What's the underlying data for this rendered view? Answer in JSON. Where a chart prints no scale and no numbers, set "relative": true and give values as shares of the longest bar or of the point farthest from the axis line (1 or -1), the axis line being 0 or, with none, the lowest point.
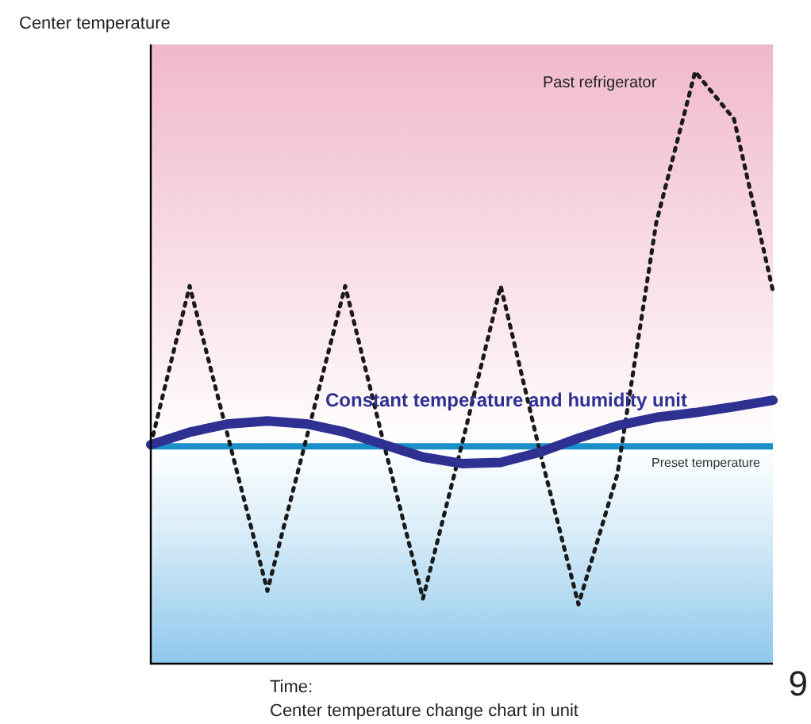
{
  "chart_data": {
    "type": "line",
    "relative": true,
    "ylabel": "Center temperature",
    "xlabel": "Time:",
    "legend": false,
    "marker": "none",
    "categories": [
      null,
      null,
      null,
      null,
      null,
      null,
      null,
      null,
      null,
      null,
      null,
      null,
      null,
      null,
      null,
      null,
      null
    ],
    "series": [
      {
        "name": "Past refrigerator",
        "color": "#1a1a1a",
        "line_style": "dotted",
        "values": [
          0.37,
          0.638,
          0.38,
          0.123,
          0.38,
          0.638,
          0.37,
          0.11,
          0.37,
          0.638,
          0.36,
          0.1,
          0.32,
          0.745,
          1,
          0.92,
          0.63
        ]
      },
      {
        "name": "Constant temperature and humidity unit",
        "color": "#2e3192",
        "line_style": "solid",
        "values": [
          0.37,
          0.391,
          0.405,
          0.41,
          0.405,
          0.391,
          0.37,
          0.349,
          0.338,
          0.34,
          0.357,
          0.381,
          0.402,
          0.416,
          0.424,
          0.434,
          0.445
        ]
      }
    ],
    "ref_lines": [
      {
        "axis": "y",
        "value": 0.367,
        "label": "Preset temperature",
        "color": "#1a8fc9"
      }
    ],
    "annotations": [
      "Center temperature change chart in unit",
      "9"
    ]
  }
}
